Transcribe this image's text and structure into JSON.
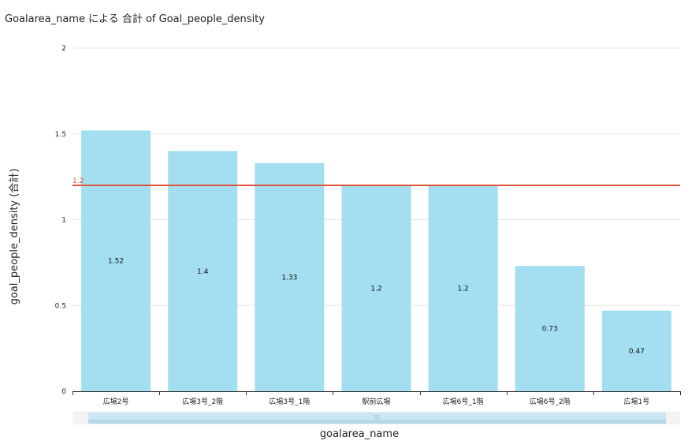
{
  "chart_data": {
    "type": "bar",
    "title": "Goalarea_name による 合計 of Goal_people_density",
    "xlabel": "goalarea_name",
    "ylabel": "goal_people_density (合計)",
    "categories": [
      "広場2号",
      "広場3号_2階",
      "広場3号_1階",
      "駅前広場",
      "広場6号_1階",
      "広場6号_2階",
      "広場1号"
    ],
    "values": [
      1.52,
      1.4,
      1.33,
      1.2,
      1.2,
      0.73,
      0.47
    ],
    "data_labels": [
      "1.52",
      "1.4",
      "1.33",
      "1.2",
      "1.2",
      "0.73",
      "0.47"
    ],
    "ylim": [
      0,
      2
    ],
    "yticks": [
      0,
      0.5,
      1,
      1.5,
      2
    ],
    "ytick_labels": [
      "0",
      "0.5",
      "1",
      "1.5",
      "2"
    ],
    "reference_line": {
      "value": 1.2,
      "label": "1.2",
      "color": "#e2553b"
    },
    "bar_color": "#a3dff0",
    "grid": true
  }
}
